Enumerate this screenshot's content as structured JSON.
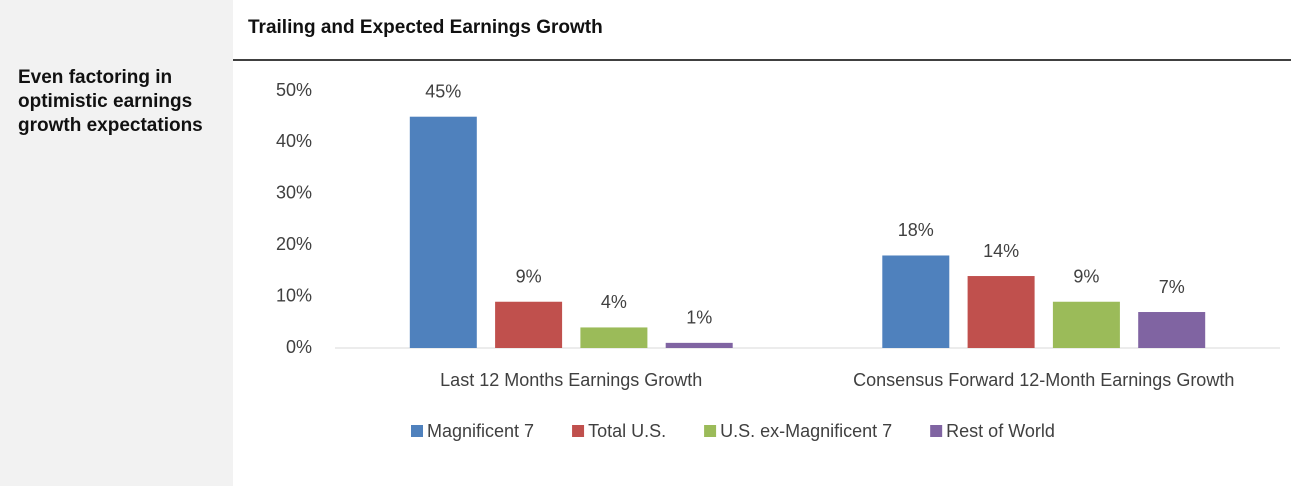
{
  "sidebar": "Even factoring in optimistic earnings growth expectations",
  "chart_data": {
    "type": "bar",
    "title": "Trailing and Expected Earnings Growth",
    "categories": [
      "Last 12 Months Earnings Growth",
      "Consensus Forward 12-Month Earnings Growth"
    ],
    "series": [
      {
        "name": "Magnificent 7",
        "color": "#4f81bd",
        "values": [
          45,
          18
        ],
        "value_labels": [
          "45%",
          "18%"
        ]
      },
      {
        "name": "Total U.S.",
        "color": "#c0504d",
        "values": [
          9,
          14
        ],
        "value_labels": [
          "9%",
          "14%"
        ]
      },
      {
        "name": "U.S. ex-Magnificent 7",
        "color": "#9bbb59",
        "values": [
          4,
          9
        ],
        "value_labels": [
          "4%",
          "9%"
        ]
      },
      {
        "name": "Rest of World",
        "color": "#8064a2",
        "values": [
          1,
          7
        ],
        "value_labels": [
          "1%",
          "7%"
        ]
      }
    ],
    "ylim": [
      0,
      50
    ],
    "yticks": [
      {
        "value": 0,
        "label": "0%"
      },
      {
        "value": 10,
        "label": "10%"
      },
      {
        "value": 20,
        "label": "20%"
      },
      {
        "value": 30,
        "label": "30%"
      },
      {
        "value": 40,
        "label": "40%"
      },
      {
        "value": 50,
        "label": "50%"
      }
    ],
    "grid": false,
    "legend": "bottom"
  }
}
